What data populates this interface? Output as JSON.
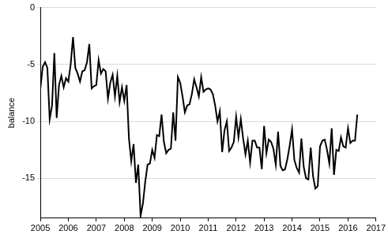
{
  "chart_data": {
    "type": "line",
    "y_label": "balance",
    "color": "#000000",
    "grid": true,
    "x": [
      2005.0,
      2005.083,
      2005.167,
      2005.25,
      2005.333,
      2005.417,
      2005.5,
      2005.583,
      2005.667,
      2005.75,
      2005.833,
      2005.917,
      2006.0,
      2006.083,
      2006.167,
      2006.25,
      2006.333,
      2006.417,
      2006.5,
      2006.583,
      2006.667,
      2006.75,
      2006.833,
      2006.917,
      2007.0,
      2007.083,
      2007.167,
      2007.25,
      2007.333,
      2007.417,
      2007.5,
      2007.583,
      2007.667,
      2007.75,
      2007.833,
      2007.917,
      2008.0,
      2008.083,
      2008.167,
      2008.25,
      2008.333,
      2008.417,
      2008.5,
      2008.583,
      2008.667,
      2008.75,
      2008.833,
      2008.917,
      2009.0,
      2009.083,
      2009.167,
      2009.25,
      2009.333,
      2009.417,
      2009.5,
      2009.583,
      2009.667,
      2009.75,
      2009.833,
      2009.917,
      2010.0,
      2010.083,
      2010.167,
      2010.25,
      2010.333,
      2010.417,
      2010.5,
      2010.583,
      2010.667,
      2010.75,
      2010.833,
      2010.917,
      2011.0,
      2011.083,
      2011.167,
      2011.25,
      2011.333,
      2011.417,
      2011.5,
      2011.583,
      2011.667,
      2011.75,
      2011.833,
      2011.917,
      2012.0,
      2012.083,
      2012.167,
      2012.25,
      2012.333,
      2012.417,
      2012.5,
      2012.583,
      2012.667,
      2012.75,
      2012.833,
      2012.917,
      2013.0,
      2013.083,
      2013.167,
      2013.25,
      2013.333,
      2013.417,
      2013.5,
      2013.583,
      2013.667,
      2013.75,
      2013.833,
      2013.917,
      2014.0,
      2014.083,
      2014.167,
      2014.25,
      2014.333,
      2014.417,
      2014.5,
      2014.583,
      2014.667,
      2014.75,
      2014.833,
      2014.917,
      2015.0,
      2015.083,
      2015.167,
      2015.25,
      2015.333,
      2015.417,
      2015.5,
      2015.583,
      2015.667,
      2015.75,
      2015.833,
      2015.917,
      2016.0,
      2016.083,
      2016.167,
      2016.25,
      2016.333
    ],
    "values": [
      -7.1,
      -5.2,
      -4.8,
      -5.3,
      -9.8,
      -8.6,
      -4.0,
      -9.7,
      -6.8,
      -6.0,
      -7.0,
      -6.2,
      -6.5,
      -5.0,
      -2.6,
      -5.3,
      -5.8,
      -6.5,
      -5.6,
      -5.5,
      -4.8,
      -3.2,
      -7.1,
      -6.9,
      -6.8,
      -4.6,
      -5.8,
      -5.4,
      -5.6,
      -8.0,
      -6.6,
      -5.9,
      -7.8,
      -6.0,
      -8.3,
      -7.0,
      -8.2,
      -6.8,
      -11.5,
      -13.5,
      -12.0,
      -15.4,
      -13.8,
      -18.3,
      -17.2,
      -15.3,
      -13.8,
      -13.7,
      -12.5,
      -13.2,
      -11.2,
      -11.3,
      -9.4,
      -11.8,
      -12.8,
      -12.5,
      -12.4,
      -9.2,
      -11.7,
      -6.1,
      -6.6,
      -7.8,
      -9.2,
      -8.6,
      -8.5,
      -7.6,
      -6.3,
      -7.0,
      -7.8,
      -6.1,
      -7.4,
      -7.2,
      -7.1,
      -7.2,
      -7.6,
      -8.6,
      -10.0,
      -9.1,
      -12.7,
      -10.8,
      -10.0,
      -12.6,
      -12.3,
      -11.8,
      -9.6,
      -11.4,
      -9.8,
      -11.5,
      -12.9,
      -11.7,
      -13.6,
      -11.7,
      -11.7,
      -12.3,
      -12.3,
      -14.2,
      -10.4,
      -12.8,
      -11.6,
      -11.8,
      -12.4,
      -13.8,
      -10.9,
      -13.9,
      -14.3,
      -14.2,
      -13.3,
      -12.1,
      -10.7,
      -13.4,
      -14.1,
      -14.5,
      -11.5,
      -14.0,
      -15.0,
      -15.1,
      -12.3,
      -14.8,
      -15.9,
      -15.7,
      -12.2,
      -11.7,
      -11.6,
      -12.5,
      -13.7,
      -10.6,
      -14.7,
      -12.5,
      -12.6,
      -11.4,
      -12.2,
      -12.3,
      -10.6,
      -11.9,
      -11.7,
      -11.7,
      -9.4
    ],
    "xlim": [
      2005,
      2017
    ],
    "xticks": [
      2005,
      2006,
      2007,
      2008,
      2009,
      2010,
      2011,
      2012,
      2013,
      2014,
      2015,
      2016,
      2017
    ],
    "ylim": [
      -18.5,
      0
    ],
    "yticks": [
      -15,
      -10,
      -5,
      0
    ]
  }
}
